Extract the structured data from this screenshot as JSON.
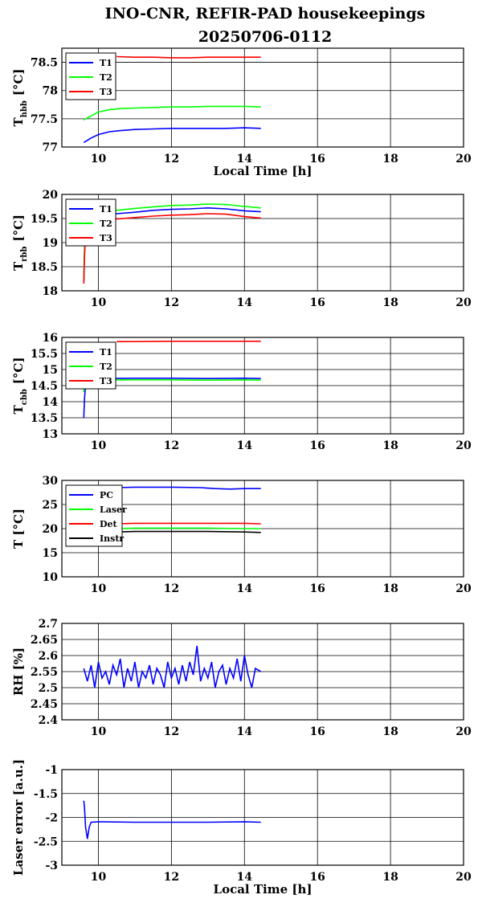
{
  "title_line1": "INO-CNR, REFIR-PAD housekeepings",
  "title_line2": "20250706-0112",
  "chart_data": [
    {
      "type": "line",
      "ylabel_main": "T",
      "ylabel_sub": "hbb",
      "ylabel_unit": "[°C]",
      "xlabel": "Local Time [h]",
      "xlim": [
        9,
        20
      ],
      "ylim": [
        77,
        78.75
      ],
      "xticks": [
        "10",
        "12",
        "14",
        "16",
        "18",
        "20"
      ],
      "yticks": [
        {
          "v": 77,
          "t": "77"
        },
        {
          "v": 77.5,
          "t": "77.5"
        },
        {
          "v": 78,
          "t": "78"
        },
        {
          "v": 78.5,
          "t": "78.5"
        }
      ],
      "grid": true,
      "legend": "top-left",
      "series": [
        {
          "name": "T1",
          "color": "#0000ff",
          "x": [
            9.6,
            9.8,
            10.0,
            10.3,
            10.6,
            11.0,
            11.5,
            12.0,
            12.5,
            13.0,
            13.5,
            14.0,
            14.45
          ],
          "y": [
            77.08,
            77.16,
            77.22,
            77.27,
            77.29,
            77.31,
            77.32,
            77.33,
            77.33,
            77.33,
            77.33,
            77.34,
            77.33
          ]
        },
        {
          "name": "T2",
          "color": "#00ff00",
          "x": [
            9.6,
            9.8,
            10.0,
            10.3,
            10.6,
            11.0,
            11.5,
            12.0,
            12.5,
            13.0,
            13.5,
            14.0,
            14.45
          ],
          "y": [
            77.48,
            77.55,
            77.62,
            77.66,
            77.68,
            77.69,
            77.7,
            77.71,
            77.71,
            77.72,
            77.72,
            77.72,
            77.71
          ]
        },
        {
          "name": "T3",
          "color": "#ff0000",
          "x": [
            10.5,
            11.0,
            11.5,
            12.0,
            12.5,
            13.0,
            13.5,
            14.0,
            14.45
          ],
          "y": [
            78.6,
            78.59,
            78.59,
            78.58,
            78.58,
            78.59,
            78.59,
            78.59,
            78.59
          ]
        }
      ]
    },
    {
      "type": "line",
      "ylabel_main": "T",
      "ylabel_sub": "rbb",
      "ylabel_unit": "[°C]",
      "xlabel": "",
      "xlim": [
        9,
        20
      ],
      "ylim": [
        18,
        20
      ],
      "xticks": [
        "10",
        "12",
        "14",
        "16",
        "18",
        "20"
      ],
      "yticks": [
        {
          "v": 18,
          "t": "18"
        },
        {
          "v": 18.5,
          "t": "18.5"
        },
        {
          "v": 19,
          "t": "19"
        },
        {
          "v": 19.5,
          "t": "19.5"
        },
        {
          "v": 20,
          "t": "20"
        }
      ],
      "grid": true,
      "legend": "top-left",
      "series": [
        {
          "name": "T1",
          "color": "#0000ff",
          "x": [
            9.6,
            9.62,
            9.65,
            9.7,
            10.0,
            10.5,
            11.0,
            11.5,
            12.0,
            12.5,
            13.0,
            13.5,
            14.0,
            14.45
          ],
          "y": [
            18.2,
            18.8,
            19.3,
            19.5,
            19.56,
            19.6,
            19.63,
            19.67,
            19.69,
            19.7,
            19.72,
            19.7,
            19.66,
            19.64
          ]
        },
        {
          "name": "T2",
          "color": "#00ff00",
          "x": [
            9.6,
            9.62,
            9.65,
            9.7,
            10.0,
            10.5,
            11.0,
            11.5,
            12.0,
            12.5,
            13.0,
            13.5,
            14.0,
            14.45
          ],
          "y": [
            18.2,
            18.9,
            19.4,
            19.55,
            19.62,
            19.67,
            19.71,
            19.74,
            19.77,
            19.78,
            19.8,
            19.79,
            19.75,
            19.72
          ]
        },
        {
          "name": "T3",
          "color": "#ff0000",
          "x": [
            9.6,
            9.62,
            9.65,
            9.7,
            10.0,
            10.5,
            11.0,
            11.5,
            12.0,
            12.5,
            13.0,
            13.5,
            14.0,
            14.45
          ],
          "y": [
            18.15,
            18.7,
            19.2,
            19.4,
            19.45,
            19.49,
            19.52,
            19.55,
            19.57,
            19.58,
            19.6,
            19.59,
            19.54,
            19.51
          ]
        }
      ]
    },
    {
      "type": "line",
      "ylabel_main": "T",
      "ylabel_sub": "cbb",
      "ylabel_unit": "[°C]",
      "xlabel": "",
      "xlim": [
        9,
        20
      ],
      "ylim": [
        13,
        16
      ],
      "xticks": [
        "10",
        "12",
        "14",
        "16",
        "18",
        "20"
      ],
      "yticks": [
        {
          "v": 13,
          "t": "13"
        },
        {
          "v": 13.5,
          "t": "13.5"
        },
        {
          "v": 14,
          "t": "14"
        },
        {
          "v": 14.5,
          "t": "14.5"
        },
        {
          "v": 15,
          "t": "15"
        },
        {
          "v": 15.5,
          "t": "15.5"
        },
        {
          "v": 16,
          "t": "16"
        }
      ],
      "grid": true,
      "legend": "top-left",
      "series": [
        {
          "name": "T1",
          "color": "#0000ff",
          "x": [
            9.6,
            9.62,
            9.65,
            9.7,
            10.0,
            11.0,
            12.0,
            13.0,
            14.0,
            14.45
          ],
          "y": [
            13.5,
            14.1,
            14.5,
            14.7,
            14.72,
            14.73,
            14.73,
            14.72,
            14.73,
            14.72
          ]
        },
        {
          "name": "T2",
          "color": "#00ff00",
          "x": [
            9.6,
            9.62,
            9.65,
            9.7,
            10.0,
            11.0,
            12.0,
            13.0,
            14.0,
            14.45
          ],
          "y": [
            14.3,
            14.5,
            14.6,
            14.66,
            14.68,
            14.68,
            14.68,
            14.67,
            14.68,
            14.67
          ]
        },
        {
          "name": "T3",
          "color": "#ff0000",
          "x": [
            10.5,
            11.0,
            12.0,
            13.0,
            14.0,
            14.45
          ],
          "y": [
            15.87,
            15.87,
            15.88,
            15.88,
            15.88,
            15.88
          ]
        }
      ]
    },
    {
      "type": "line",
      "ylabel_main": "T [°C]",
      "ylabel_sub": "",
      "ylabel_unit": "",
      "xlabel": "",
      "xlim": [
        9,
        20
      ],
      "ylim": [
        10,
        30
      ],
      "xticks": [
        "10",
        "12",
        "14",
        "16",
        "18",
        "20"
      ],
      "yticks": [
        {
          "v": 10,
          "t": "10"
        },
        {
          "v": 15,
          "t": "15"
        },
        {
          "v": 20,
          "t": "20"
        },
        {
          "v": 25,
          "t": "25"
        },
        {
          "v": 30,
          "t": "30"
        }
      ],
      "grid": true,
      "legend": "top-left",
      "series": [
        {
          "name": "PC",
          "color": "#0000ff",
          "x": [
            10.5,
            11.0,
            12.0,
            12.8,
            13.2,
            13.6,
            14.0,
            14.45
          ],
          "y": [
            28.5,
            28.6,
            28.6,
            28.5,
            28.3,
            28.2,
            28.3,
            28.3
          ]
        },
        {
          "name": "Laser",
          "color": "#00ff00",
          "x": [
            10.5,
            11.0,
            12.0,
            13.0,
            14.0,
            14.45
          ],
          "y": [
            20.0,
            20.1,
            20.1,
            20.1,
            20.0,
            20.0
          ]
        },
        {
          "name": "Det",
          "color": "#ff0000",
          "x": [
            10.5,
            11.0,
            12.0,
            13.0,
            14.0,
            14.45
          ],
          "y": [
            21.0,
            21.1,
            21.1,
            21.1,
            21.1,
            21.0
          ]
        },
        {
          "name": "Instr",
          "color": "#000000",
          "x": [
            10.5,
            11.0,
            12.0,
            13.0,
            14.0,
            14.45
          ],
          "y": [
            19.3,
            19.4,
            19.4,
            19.4,
            19.3,
            19.2
          ]
        }
      ]
    },
    {
      "type": "line",
      "ylabel_main": "RH [%]",
      "ylabel_sub": "",
      "ylabel_unit": "",
      "xlabel": "",
      "xlim": [
        9,
        20
      ],
      "ylim": [
        2.4,
        2.7
      ],
      "xticks": [
        "10",
        "12",
        "14",
        "16",
        "18",
        "20"
      ],
      "yticks": [
        {
          "v": 2.4,
          "t": "2.4"
        },
        {
          "v": 2.45,
          "t": "2.45"
        },
        {
          "v": 2.5,
          "t": "2.5"
        },
        {
          "v": 2.55,
          "t": "2.55"
        },
        {
          "v": 2.6,
          "t": "2.6"
        },
        {
          "v": 2.65,
          "t": "2.65"
        },
        {
          "v": 2.7,
          "t": "2.7"
        }
      ],
      "grid": true,
      "legend": "none",
      "series": [
        {
          "color": "#0000ff",
          "x": [
            9.6,
            9.7,
            9.8,
            9.9,
            10.0,
            10.1,
            10.2,
            10.3,
            10.4,
            10.5,
            10.6,
            10.7,
            10.8,
            10.9,
            11.0,
            11.1,
            11.2,
            11.3,
            11.4,
            11.5,
            11.6,
            11.7,
            11.8,
            11.9,
            12.0,
            12.1,
            12.2,
            12.3,
            12.4,
            12.5,
            12.6,
            12.7,
            12.8,
            12.9,
            13.0,
            13.1,
            13.2,
            13.3,
            13.4,
            13.5,
            13.6,
            13.7,
            13.8,
            13.9,
            14.0,
            14.1,
            14.2,
            14.3,
            14.45
          ],
          "y": [
            2.56,
            2.52,
            2.57,
            2.5,
            2.58,
            2.53,
            2.55,
            2.51,
            2.57,
            2.54,
            2.59,
            2.5,
            2.56,
            2.52,
            2.58,
            2.5,
            2.55,
            2.53,
            2.57,
            2.51,
            2.56,
            2.54,
            2.5,
            2.58,
            2.53,
            2.56,
            2.51,
            2.57,
            2.52,
            2.58,
            2.54,
            2.63,
            2.52,
            2.56,
            2.53,
            2.58,
            2.5,
            2.55,
            2.57,
            2.51,
            2.56,
            2.53,
            2.59,
            2.52,
            2.6,
            2.54,
            2.5,
            2.56,
            2.55
          ]
        }
      ]
    },
    {
      "type": "line",
      "ylabel_main": "Laser error [a.u.]",
      "ylabel_sub": "",
      "ylabel_unit": "",
      "xlabel": "Local Time [h]",
      "xlim": [
        9,
        20
      ],
      "ylim": [
        -3,
        -1
      ],
      "xticks": [
        "10",
        "12",
        "14",
        "16",
        "18",
        "20"
      ],
      "yticks": [
        {
          "v": -3,
          "t": "-3"
        },
        {
          "v": -2.5,
          "t": "-2.5"
        },
        {
          "v": -2,
          "t": "-2"
        },
        {
          "v": -1.5,
          "t": "-1.5"
        },
        {
          "v": -1,
          "t": "-1"
        }
      ],
      "grid": true,
      "legend": "none",
      "series": [
        {
          "color": "#0000ff",
          "x": [
            9.6,
            9.62,
            9.65,
            9.7,
            9.75,
            9.8,
            10.0,
            11.0,
            12.0,
            13.0,
            14.0,
            14.45
          ],
          "y": [
            -1.65,
            -1.8,
            -2.2,
            -2.45,
            -2.2,
            -2.1,
            -2.09,
            -2.1,
            -2.1,
            -2.1,
            -2.09,
            -2.1
          ]
        }
      ]
    }
  ]
}
